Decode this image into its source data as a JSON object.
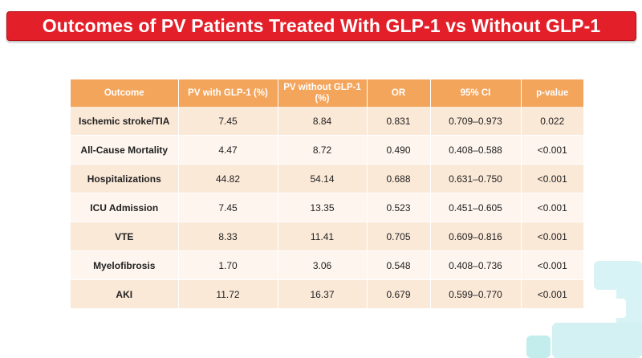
{
  "title": "Outcomes of PV Patients Treated With GLP-1 vs Without GLP-1",
  "table": {
    "headers": [
      "Outcome",
      "PV with GLP-1 (%)",
      "PV without GLP-1 (%)",
      "OR",
      "95% CI",
      "p-value"
    ],
    "rows": [
      [
        "Ischemic stroke/TIA",
        "7.45",
        "8.84",
        "0.831",
        "0.709–0.973",
        "0.022"
      ],
      [
        "All-Cause Mortality",
        "4.47",
        "8.72",
        "0.490",
        "0.408–0.588",
        "<0.001"
      ],
      [
        "Hospitalizations",
        "44.82",
        "54.14",
        "0.688",
        "0.631–0.750",
        "<0.001"
      ],
      [
        "ICU Admission",
        "7.45",
        "13.35",
        "0.523",
        "0.451–0.605",
        "<0.001"
      ],
      [
        "VTE",
        "8.33",
        "11.41",
        "0.705",
        "0.609–0.816",
        "<0.001"
      ],
      [
        "Myelofibrosis",
        "1.70",
        "3.06",
        "0.548",
        "0.408–0.736",
        "<0.001"
      ],
      [
        "AKI",
        "11.72",
        "16.37",
        "0.679",
        "0.599–0.770",
        "<0.001"
      ]
    ]
  },
  "colors": {
    "banner": "#e3202a",
    "header": "#f4a55c",
    "row_odd": "#fbe9d8",
    "row_even": "#fdf5ee",
    "decoration": "#d8f3f5"
  }
}
